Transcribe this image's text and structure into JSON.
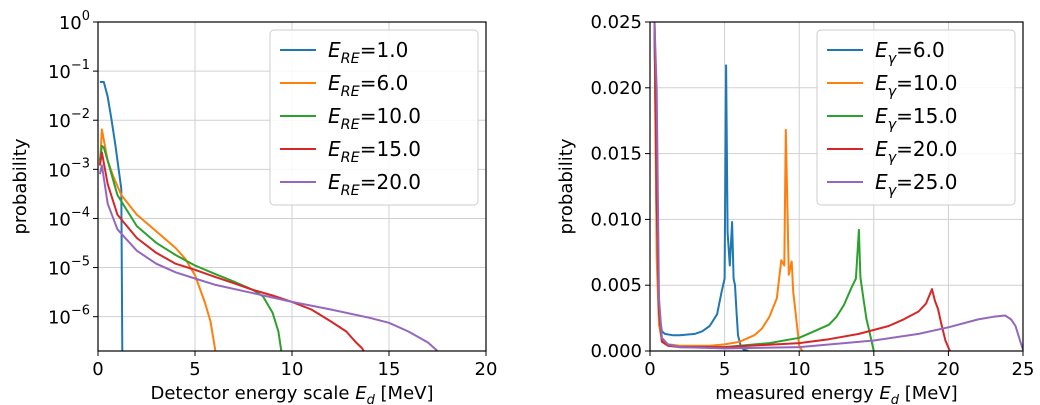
{
  "chart_data": [
    {
      "type": "line",
      "xlabel": "Detector energy scale $E_d$ [MeV]",
      "ylabel": "probability",
      "xlim": [
        0,
        20
      ],
      "ylim": [
        2e-07,
        1
      ],
      "yscale": "log",
      "grid": true,
      "legend_position": "top-right",
      "xticks": [
        "0",
        "5",
        "10",
        "15",
        "20"
      ],
      "yticks": [
        {
          "base": "10",
          "exp": "0"
        },
        {
          "base": "10",
          "exp": "−1"
        },
        {
          "base": "10",
          "exp": "−2"
        },
        {
          "base": "10",
          "exp": "−3"
        },
        {
          "base": "10",
          "exp": "−4"
        },
        {
          "base": "10",
          "exp": "−5"
        },
        {
          "base": "10",
          "exp": "−6"
        }
      ],
      "series": [
        {
          "name": "E_RE=1.0",
          "color": "#1f77b4",
          "x": [
            0.1,
            0.3,
            0.5,
            0.7,
            0.9,
            1.1,
            1.2,
            1.25
          ],
          "y": [
            0.06,
            0.06,
            0.03,
            0.01,
            0.003,
            0.0008,
            0.0004,
            2e-07
          ]
        },
        {
          "name": "E_RE=6.0",
          "color": "#ff7f0e",
          "x": [
            0.1,
            0.2,
            0.3,
            0.5,
            0.8,
            1.2,
            2,
            3,
            4,
            4.5,
            5,
            5.5,
            5.8,
            6.05
          ],
          "y": [
            0.0012,
            0.0065,
            0.004,
            0.0015,
            0.0007,
            0.0003,
            0.00012,
            5.5e-05,
            2.5e-05,
            1.5e-05,
            7e-06,
            2e-06,
            8e-07,
            2e-07
          ]
        },
        {
          "name": "E_RE=10.0",
          "color": "#2ca02c",
          "x": [
            0.1,
            0.2,
            0.3,
            0.5,
            1,
            2,
            3,
            4,
            5,
            6,
            7,
            8,
            8.5,
            9,
            9.3,
            9.45
          ],
          "y": [
            0.0015,
            0.003,
            0.0028,
            0.0015,
            0.0003,
            7e-05,
            3.2e-05,
            1.8e-05,
            1.1e-05,
            7.5e-06,
            5.2e-06,
            3.5e-06,
            2.6e-06,
            1.2e-06,
            5e-07,
            2e-07
          ]
        },
        {
          "name": "E_RE=15.0",
          "color": "#d62728",
          "x": [
            0.1,
            0.2,
            0.5,
            1,
            2,
            3,
            4,
            5,
            6,
            7,
            8,
            9,
            10,
            11,
            12,
            12.8,
            13.3,
            13.6,
            13.7
          ],
          "y": [
            0.0012,
            0.0022,
            0.0005,
            0.00012,
            4e-05,
            2e-05,
            1.2e-05,
            9e-06,
            6.5e-06,
            4.8e-06,
            3.5e-06,
            2.7e-06,
            2e-06,
            1.4e-06,
            8e-07,
            5e-07,
            3e-07,
            2.3e-07,
            2e-07
          ]
        },
        {
          "name": "E_RE=20.0",
          "color": "#9467bd",
          "x": [
            0.1,
            0.2,
            0.5,
            1,
            2,
            3,
            4,
            5,
            6,
            8,
            10,
            12,
            14,
            15,
            16,
            17,
            17.5
          ],
          "y": [
            0.0008,
            0.0012,
            0.0002,
            6e-05,
            2.2e-05,
            1.2e-05,
            8e-06,
            6e-06,
            4.5e-06,
            3e-06,
            2e-06,
            1.4e-06,
            9.5e-07,
            7.5e-07,
            5e-07,
            3e-07,
            2e-07
          ]
        }
      ]
    },
    {
      "type": "line",
      "xlabel": "measured energy $E_d$ [MeV]",
      "ylabel": "probability",
      "xlim": [
        0,
        25
      ],
      "ylim": [
        0,
        0.025
      ],
      "grid": true,
      "legend_position": "top-right",
      "xticks": [
        "0",
        "5",
        "10",
        "15",
        "20",
        "25"
      ],
      "yticks": [
        "0.000",
        "0.005",
        "0.010",
        "0.015",
        "0.020",
        "0.025"
      ],
      "series": [
        {
          "name": "E_γ=6.0",
          "color": "#1f77b4",
          "x": [
            0.3,
            0.45,
            0.6,
            0.8,
            1.0,
            1.5,
            2,
            3,
            3.5,
            4,
            4.5,
            4.8,
            5.0,
            5.1,
            5.2,
            5.35,
            5.5,
            5.6,
            5.7,
            5.8,
            5.9,
            6.1,
            6.3,
            6.6
          ],
          "y": [
            0.025,
            0.009,
            0.003,
            0.0015,
            0.0013,
            0.0012,
            0.0012,
            0.0013,
            0.0015,
            0.0019,
            0.0028,
            0.0045,
            0.0055,
            0.0217,
            0.009,
            0.0065,
            0.0098,
            0.0055,
            0.005,
            0.003,
            0.0012,
            0.0003,
            0.0001,
            0.0
          ]
        },
        {
          "name": "E_γ=10.0",
          "color": "#ff7f0e",
          "x": [
            0.3,
            0.45,
            0.6,
            0.8,
            1.2,
            2,
            4,
            5,
            6,
            7,
            7.5,
            8,
            8.5,
            8.8,
            9.0,
            9.1,
            9.3,
            9.5,
            9.6,
            9.8,
            10.0,
            10.2
          ],
          "y": [
            0.025,
            0.007,
            0.002,
            0.0008,
            0.0005,
            0.0004,
            0.0004,
            0.0005,
            0.0007,
            0.0012,
            0.0017,
            0.0026,
            0.004,
            0.0069,
            0.0065,
            0.0168,
            0.0058,
            0.0068,
            0.0045,
            0.0025,
            0.0004,
            0.0
          ]
        },
        {
          "name": "E_γ=15.0",
          "color": "#2ca02c",
          "x": [
            0.3,
            0.45,
            0.6,
            0.8,
            1.2,
            2,
            5,
            8,
            10,
            11,
            12,
            12.5,
            13,
            13.5,
            13.8,
            14.0,
            14.1,
            14.3,
            14.5,
            14.8,
            15.0
          ],
          "y": [
            0.025,
            0.0113,
            0.003,
            0.0008,
            0.0005,
            0.0003,
            0.0003,
            0.0006,
            0.001,
            0.0015,
            0.002,
            0.0026,
            0.0035,
            0.0048,
            0.0055,
            0.0092,
            0.0056,
            0.004,
            0.0025,
            0.001,
            0.0
          ]
        },
        {
          "name": "E_γ=20.0",
          "color": "#d62728",
          "x": [
            0.3,
            0.45,
            0.6,
            0.8,
            1.2,
            2,
            5,
            10,
            12,
            14,
            16,
            17,
            18,
            18.5,
            18.9,
            19.1,
            19.3,
            19.5,
            19.8,
            20.1
          ],
          "y": [
            0.025,
            0.0115,
            0.003,
            0.0007,
            0.0004,
            0.0003,
            0.0003,
            0.0006,
            0.0009,
            0.0013,
            0.0019,
            0.0024,
            0.003,
            0.0036,
            0.0047,
            0.0038,
            0.0032,
            0.0022,
            0.0008,
            0.0
          ]
        },
        {
          "name": "E_γ=25.0",
          "color": "#9467bd",
          "x": [
            0.3,
            0.45,
            0.6,
            0.8,
            1.2,
            2,
            5,
            10,
            15,
            18,
            20,
            22,
            23,
            23.8,
            24.2,
            24.5,
            24.8,
            25.0
          ],
          "y": [
            0.025,
            0.0198,
            0.004,
            0.001,
            0.0005,
            0.0003,
            0.0002,
            0.0003,
            0.0008,
            0.0013,
            0.0018,
            0.0024,
            0.0026,
            0.0027,
            0.0024,
            0.0019,
            0.0008,
            0.0001
          ]
        }
      ]
    }
  ]
}
